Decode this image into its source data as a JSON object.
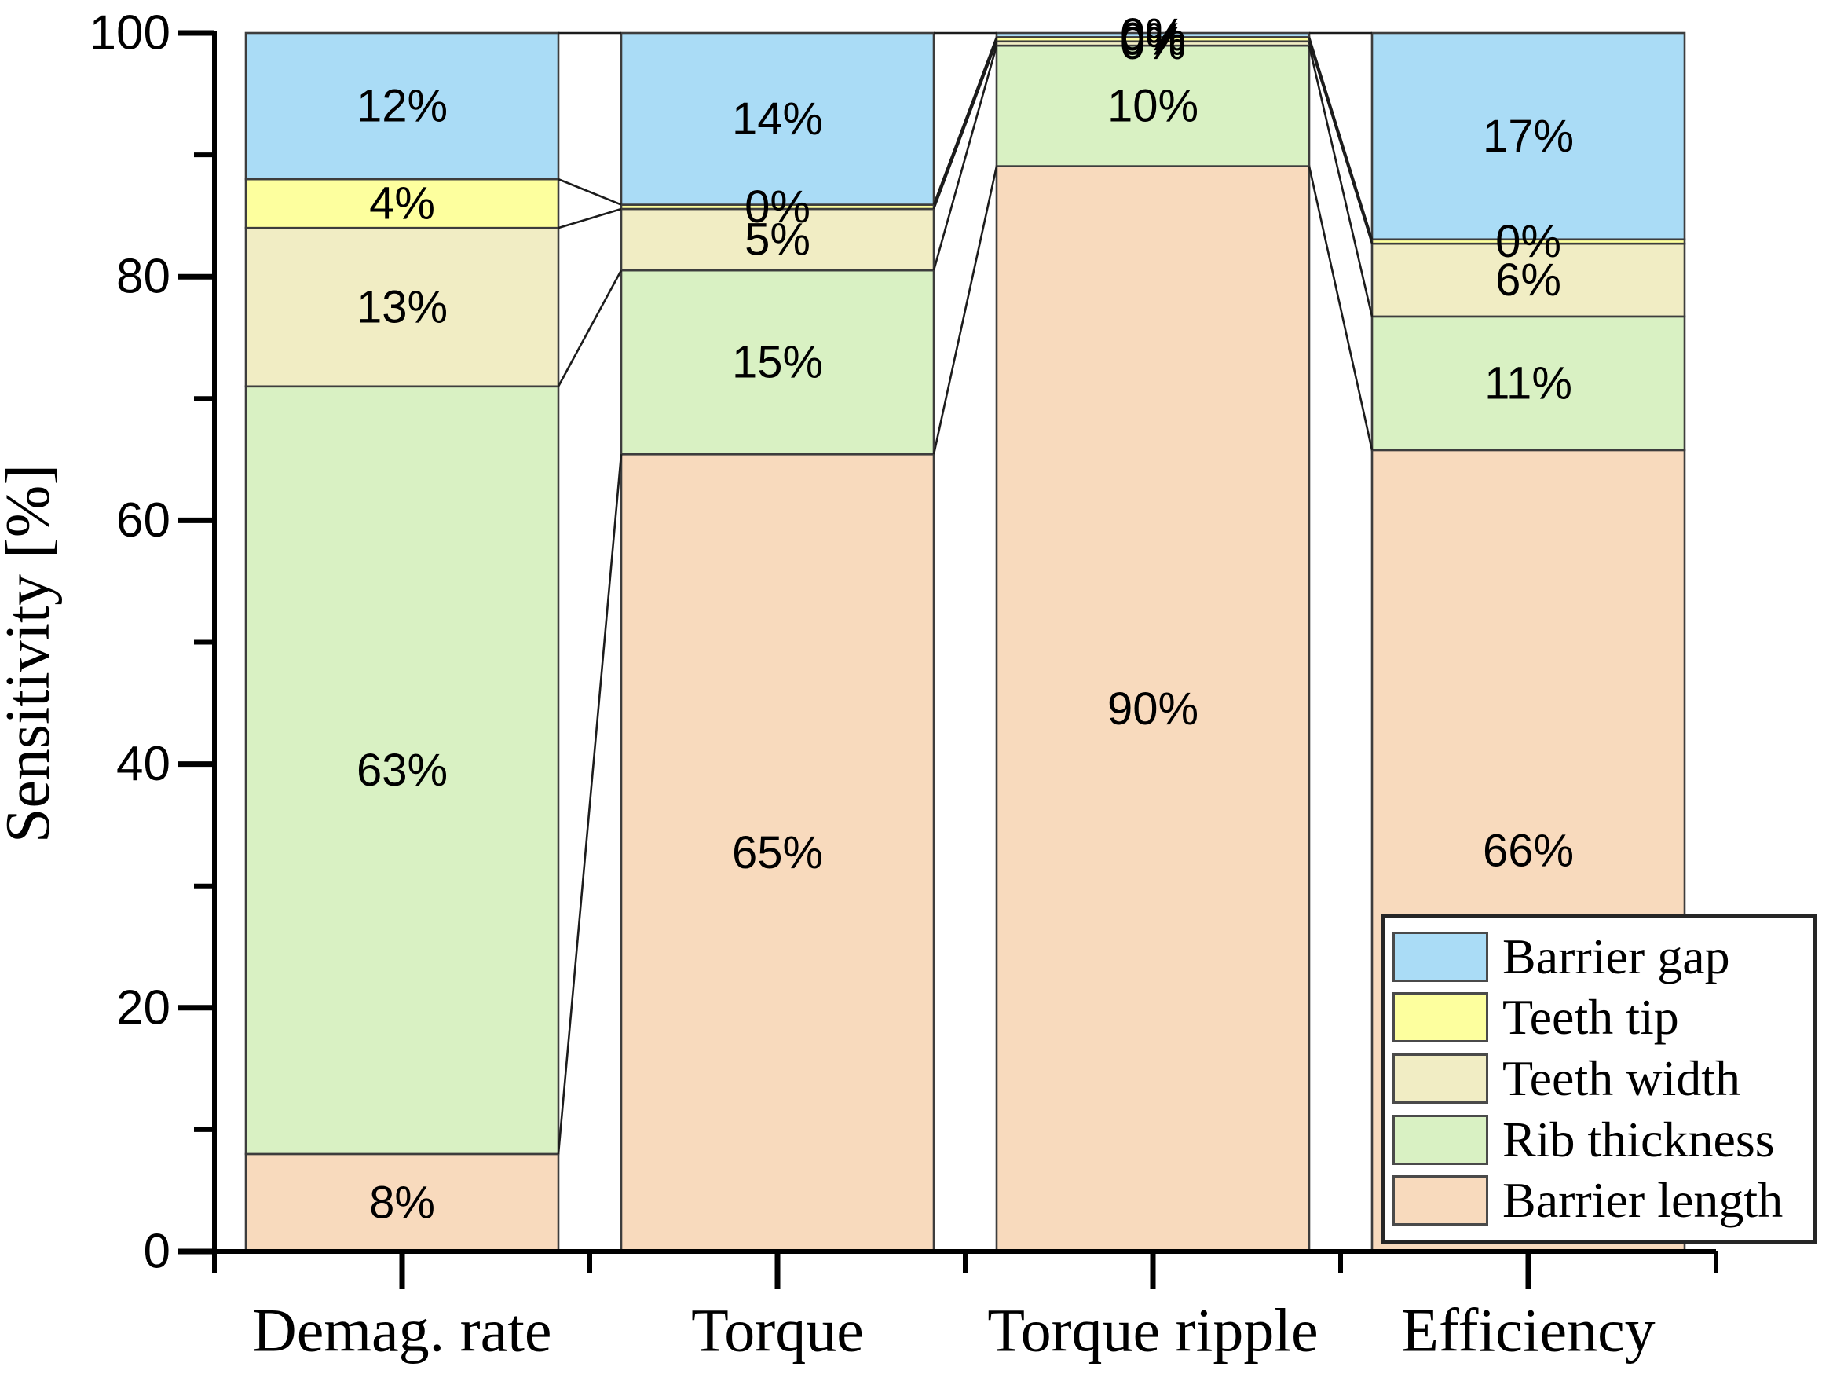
{
  "chart_data": {
    "type": "bar",
    "variant": "stacked-percent-with-connectors",
    "title": "",
    "ylabel": "Sensitivity [%]",
    "xlabel": "",
    "ylim": [
      0,
      100
    ],
    "yticks_major": [
      0,
      20,
      40,
      60,
      80,
      100
    ],
    "yticks_minor": [
      10,
      30,
      50,
      70,
      90
    ],
    "grid": false,
    "legend_position": "inside-bottom-right",
    "categories": [
      "Demag. rate",
      "Torque",
      "Torque ripple",
      "Efficiency"
    ],
    "series": [
      {
        "name": "Barrier length",
        "color": "#f8dabd",
        "values": [
          8,
          65,
          90,
          66
        ],
        "labels": [
          "8%",
          "65%",
          "90%",
          "66%"
        ]
      },
      {
        "name": "Rib thickness",
        "color": "#d9f1c3",
        "values": [
          63,
          15,
          10,
          11
        ],
        "labels": [
          "63%",
          "15%",
          "10%",
          "11%"
        ]
      },
      {
        "name": "Teeth width",
        "color": "#f1edc4",
        "values": [
          13,
          5,
          0,
          6
        ],
        "labels": [
          "13%",
          "5%",
          "0%",
          "6%"
        ]
      },
      {
        "name": "Teeth tip",
        "color": "#fdff9e",
        "values": [
          4,
          0,
          0,
          0
        ],
        "labels": [
          "4%",
          "0%",
          "0%",
          "0%"
        ]
      },
      {
        "name": "Barrier gap",
        "color": "#aadcf6",
        "values": [
          12,
          14,
          0,
          17
        ],
        "labels": [
          "12%",
          "14%",
          "0%",
          "17%"
        ]
      }
    ],
    "legend": {
      "items": [
        {
          "label": "Barrier gap",
          "color": "#aadcf6"
        },
        {
          "label": "Teeth tip",
          "color": "#fdff9e"
        },
        {
          "label": "Teeth width",
          "color": "#f1edc4"
        },
        {
          "label": "Rib thickness",
          "color": "#d9f1c3"
        },
        {
          "label": "Barrier length",
          "color": "#f8dabd"
        }
      ]
    },
    "colors": {
      "axis": "#000000",
      "segment_border": "#3d3d3d",
      "connector_line": "#1c1c1c",
      "background": "#ffffff"
    }
  }
}
